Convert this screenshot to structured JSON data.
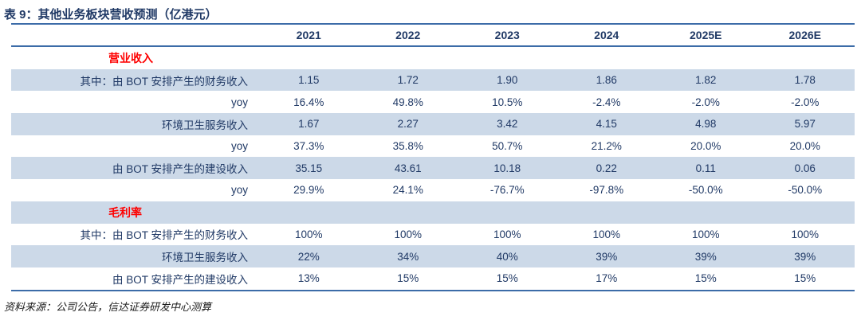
{
  "title": "表 9：其他业务板块营收预测（亿港元）",
  "source_note": "资料来源：公司公告，信达证券研发中心测算",
  "colors": {
    "rule_line": "#3C6CA8",
    "row_stripe": "#CCD9E8",
    "text_navy": "#213A66",
    "section_red": "#FE0000"
  },
  "table": {
    "columns": [
      "2021",
      "2022",
      "2023",
      "2024",
      "2025E",
      "2026E"
    ],
    "rows": [
      {
        "type": "section",
        "label": "营业收入",
        "values": [
          "",
          "",
          "",
          "",
          "",
          ""
        ]
      },
      {
        "type": "data",
        "label": "其中：由 BOT 安排产生的财务收入",
        "values": [
          "1.15",
          "1.72",
          "1.90",
          "1.86",
          "1.82",
          "1.78"
        ]
      },
      {
        "type": "data",
        "label": "yoy",
        "values": [
          "16.4%",
          "49.8%",
          "10.5%",
          "-2.4%",
          "-2.0%",
          "-2.0%"
        ]
      },
      {
        "type": "data",
        "label": "环境卫生服务收入",
        "values": [
          "1.67",
          "2.27",
          "3.42",
          "4.15",
          "4.98",
          "5.97"
        ]
      },
      {
        "type": "data",
        "label": "yoy",
        "values": [
          "37.3%",
          "35.8%",
          "50.7%",
          "21.2%",
          "20.0%",
          "20.0%"
        ]
      },
      {
        "type": "data",
        "label": "由 BOT 安排产生的建设收入",
        "values": [
          "35.15",
          "43.61",
          "10.18",
          "0.22",
          "0.11",
          "0.06"
        ]
      },
      {
        "type": "data",
        "label": "yoy",
        "values": [
          "29.9%",
          "24.1%",
          "-76.7%",
          "-97.8%",
          "-50.0%",
          "-50.0%"
        ]
      },
      {
        "type": "section",
        "label": "毛利率",
        "values": [
          "",
          "",
          "",
          "",
          "",
          ""
        ]
      },
      {
        "type": "data",
        "label": "其中：由 BOT 安排产生的财务收入",
        "values": [
          "100%",
          "100%",
          "100%",
          "100%",
          "100%",
          "100%"
        ]
      },
      {
        "type": "data",
        "label": "环境卫生服务收入",
        "values": [
          "22%",
          "34%",
          "40%",
          "39%",
          "39%",
          "39%"
        ]
      },
      {
        "type": "data",
        "label": "由 BOT 安排产生的建设收入",
        "values": [
          "13%",
          "15%",
          "15%",
          "17%",
          "15%",
          "15%"
        ]
      }
    ]
  }
}
